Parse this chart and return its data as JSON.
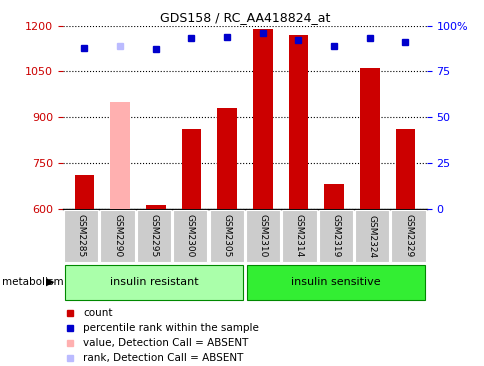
{
  "title": "GDS158 / RC_AA418824_at",
  "samples": [
    "GSM2285",
    "GSM2290",
    "GSM2295",
    "GSM2300",
    "GSM2305",
    "GSM2310",
    "GSM2314",
    "GSM2319",
    "GSM2324",
    "GSM2329"
  ],
  "count_values": [
    710,
    950,
    613,
    860,
    930,
    1190,
    1170,
    680,
    1060,
    860
  ],
  "rank_values": [
    88,
    89,
    87,
    93,
    94,
    96,
    92,
    89,
    93,
    91
  ],
  "absent_samples": [
    1
  ],
  "ylim_left": [
    600,
    1200
  ],
  "ylim_right": [
    0,
    100
  ],
  "yticks_left": [
    600,
    750,
    900,
    1050,
    1200
  ],
  "yticks_right": [
    0,
    25,
    50,
    75,
    100
  ],
  "groups": [
    {
      "label": "insulin resistant",
      "span": [
        0,
        5
      ],
      "color": "#aaffaa"
    },
    {
      "label": "insulin sensitive",
      "span": [
        5,
        10
      ],
      "color": "#33ee33"
    }
  ],
  "group_label": "metabolism",
  "bar_color_present": "#cc0000",
  "bar_color_absent": "#ffb0b0",
  "dot_color_present": "#0000cc",
  "dot_color_absent": "#bbbbff",
  "background_color": "#ffffff",
  "tick_label_area_color": "#cccccc",
  "legend_items": [
    {
      "color": "#cc0000",
      "label": "count"
    },
    {
      "color": "#0000cc",
      "label": "percentile rank within the sample"
    },
    {
      "color": "#ffb0b0",
      "label": "value, Detection Call = ABSENT"
    },
    {
      "color": "#bbbbff",
      "label": "rank, Detection Call = ABSENT"
    }
  ]
}
